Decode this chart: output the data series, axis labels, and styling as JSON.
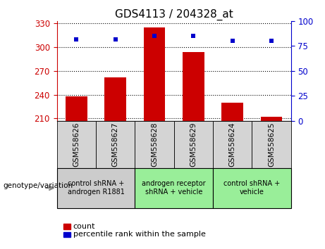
{
  "title": "GDS4113 / 204328_at",
  "samples": [
    "GSM558626",
    "GSM558627",
    "GSM558628",
    "GSM558629",
    "GSM558624",
    "GSM558625"
  ],
  "bar_values": [
    238,
    262,
    325,
    294,
    230,
    212
  ],
  "bar_base": 207,
  "percentile_values": [
    82,
    82,
    85,
    85,
    80,
    80
  ],
  "bar_color": "#cc0000",
  "dot_color": "#0000cc",
  "ylim_left": [
    207,
    333
  ],
  "ylim_right": [
    0,
    100
  ],
  "yticks_left": [
    210,
    240,
    270,
    300,
    330
  ],
  "yticks_right": [
    0,
    25,
    50,
    75,
    100
  ],
  "groups": [
    {
      "label": "control shRNA +\nandrogen R1881",
      "samples": [
        0,
        1
      ],
      "color": "#cccccc"
    },
    {
      "label": "androgen receptor\nshRNA + vehicle",
      "samples": [
        2,
        3
      ],
      "color": "#99ee99"
    },
    {
      "label": "control shRNA +\nvehicle",
      "samples": [
        4,
        5
      ],
      "color": "#99ee99"
    }
  ],
  "xlabel_label": "genotype/variation",
  "legend_count_label": "count",
  "legend_percentile_label": "percentile rank within the sample",
  "background_color": "#ffffff",
  "tick_label_color_left": "#cc0000",
  "tick_label_color_right": "#0000cc",
  "sample_label_bg": "#d4d4d4",
  "group_label_bg_gray": "#cccccc",
  "group_label_bg_green": "#99ee99"
}
